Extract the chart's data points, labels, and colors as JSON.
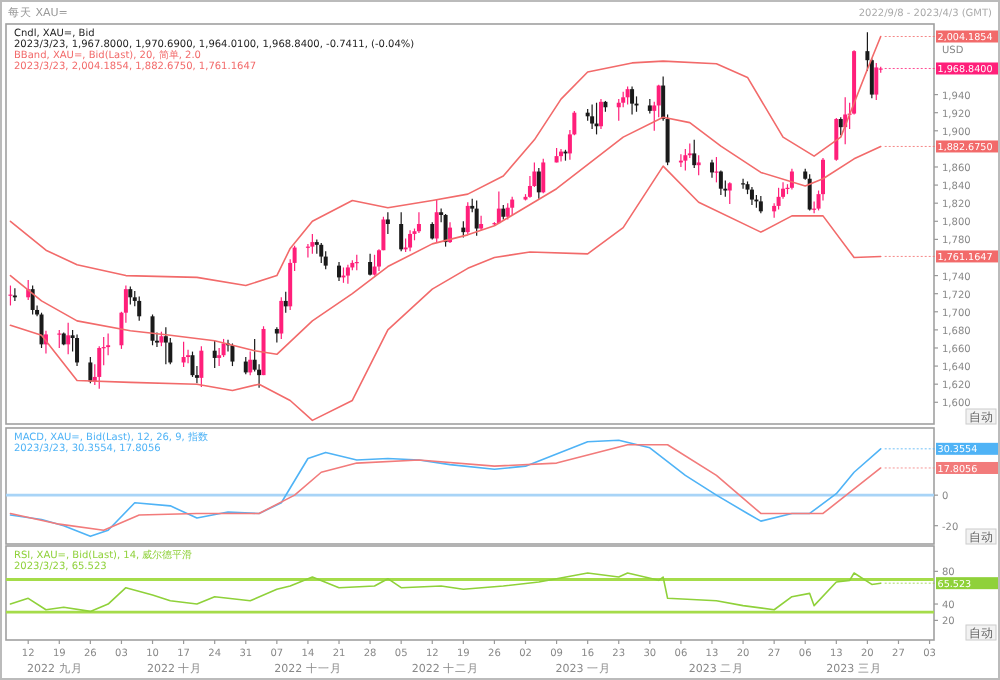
{
  "chart_data": [
    {
      "type": "candlestick",
      "title": "每天 XAU=",
      "subtitle": "2022/9/8 - 2023/4/3 (GMT)",
      "ylabel": "USD",
      "xlim": [
        "2022-09-07",
        "2023-04-04"
      ],
      "ylim": [
        1576,
        2018
      ],
      "yticks": [
        {
          "value": 1600,
          "label": "1,600"
        },
        {
          "value": 1620,
          "label": "1,620"
        },
        {
          "value": 1640,
          "label": "1,640"
        },
        {
          "value": 1660,
          "label": "1,660"
        },
        {
          "value": 1680,
          "label": "1,680"
        },
        {
          "value": 1700,
          "label": "1,700"
        },
        {
          "value": 1720,
          "label": "1,720"
        },
        {
          "value": 1740,
          "label": "1,740"
        },
        {
          "value": 1780,
          "label": "1,780"
        },
        {
          "value": 1800,
          "label": "1,800"
        },
        {
          "value": 1820,
          "label": "1,820"
        },
        {
          "value": 1840,
          "label": "1,840"
        },
        {
          "value": 1860,
          "label": "1,860"
        },
        {
          "value": 1900,
          "label": "1,900"
        },
        {
          "value": 1920,
          "label": "1,920"
        },
        {
          "value": 1940,
          "label": "1,940"
        }
      ],
      "tick_labels": "y",
      "annotations": [
        "2023/3/23, 1,967.8000, 1,970.6900, 1,964.0100, 1,968.8400, -0.7411, (-0.04%)",
        "2023/3/23, 2,004.1854, 1,882.6750, 1,761.1647",
        "自动",
        {
          "text": "2,004.1854",
          "x": "2023-03-23",
          "y": 2004.1854
        },
        {
          "text": "1,968.8400",
          "x": "2023-03-23",
          "y": 1968.84
        },
        {
          "text": "1,882.6750",
          "x": "2023-03-23",
          "y": 1882.675
        },
        {
          "text": "1,761.1647",
          "x": "2023-03-23",
          "y": 1761.1647
        }
      ],
      "series": [
        {
          "type": "candlestick",
          "name": "Cndl, XAU=, Bid",
          "color": "#222222",
          "x": [
            "2022-09-08",
            "2022-09-09",
            "2022-09-12",
            "2022-09-13",
            "2022-09-14",
            "2022-09-15",
            "2022-09-16",
            "2022-09-19",
            "2022-09-20",
            "2022-09-21",
            "2022-09-22",
            "2022-09-23",
            "2022-09-26",
            "2022-09-27",
            "2022-09-28",
            "2022-09-29",
            "2022-09-30",
            "2022-10-03",
            "2022-10-04",
            "2022-10-05",
            "2022-10-06",
            "2022-10-07",
            "2022-10-10",
            "2022-10-11",
            "2022-10-12",
            "2022-10-13",
            "2022-10-14",
            "2022-10-17",
            "2022-10-18",
            "2022-10-19",
            "2022-10-20",
            "2022-10-21",
            "2022-10-24",
            "2022-10-25",
            "2022-10-26",
            "2022-10-27",
            "2022-10-28",
            "2022-10-31",
            "2022-11-01",
            "2022-11-02",
            "2022-11-03",
            "2022-11-04",
            "2022-11-07",
            "2022-11-08",
            "2022-11-09",
            "2022-11-10",
            "2022-11-11",
            "2022-11-14",
            "2022-11-15",
            "2022-11-16",
            "2022-11-17",
            "2022-11-18",
            "2022-11-21",
            "2022-11-22",
            "2022-11-23",
            "2022-11-24",
            "2022-11-25",
            "2022-11-28",
            "2022-11-29",
            "2022-11-30",
            "2022-12-01",
            "2022-12-02",
            "2022-12-05",
            "2022-12-06",
            "2022-12-07",
            "2022-12-08",
            "2022-12-09",
            "2022-12-12",
            "2022-12-13",
            "2022-12-14",
            "2022-12-15",
            "2022-12-16",
            "2022-12-19",
            "2022-12-20",
            "2022-12-21",
            "2022-12-22",
            "2022-12-23",
            "2022-12-26",
            "2022-12-27",
            "2022-12-28",
            "2022-12-29",
            "2022-12-30",
            "2023-01-02",
            "2023-01-03",
            "2023-01-04",
            "2023-01-05",
            "2023-01-06",
            "2023-01-09",
            "2023-01-10",
            "2023-01-11",
            "2023-01-12",
            "2023-01-13",
            "2023-01-16",
            "2023-01-17",
            "2023-01-18",
            "2023-01-19",
            "2023-01-20",
            "2023-01-23",
            "2023-01-24",
            "2023-01-25",
            "2023-01-26",
            "2023-01-27",
            "2023-01-30",
            "2023-01-31",
            "2023-02-01",
            "2023-02-02",
            "2023-02-03",
            "2023-02-06",
            "2023-02-07",
            "2023-02-08",
            "2023-02-09",
            "2023-02-10",
            "2023-02-13",
            "2023-02-14",
            "2023-02-15",
            "2023-02-16",
            "2023-02-17",
            "2023-02-20",
            "2023-02-21",
            "2023-02-22",
            "2023-02-23",
            "2023-02-24",
            "2023-02-27",
            "2023-02-28",
            "2023-03-01",
            "2023-03-02",
            "2023-03-03",
            "2023-03-06",
            "2023-03-07",
            "2023-03-08",
            "2023-03-09",
            "2023-03-10",
            "2023-03-13",
            "2023-03-14",
            "2023-03-15",
            "2023-03-16",
            "2023-03-17",
            "2023-03-20",
            "2023-03-21",
            "2023-03-22",
            "2023-03-23"
          ],
          "ohlc": [
            [
              1718,
              1729,
              1707,
              1719
            ],
            [
              1718,
              1726,
              1712,
              1716
            ],
            [
              1716,
              1735,
              1713,
              1725
            ],
            [
              1725,
              1729,
              1697,
              1702
            ],
            [
              1702,
              1707,
              1695,
              1697
            ],
            [
              1697,
              1699,
              1660,
              1664
            ],
            [
              1664,
              1679,
              1654,
              1675
            ],
            [
              1675,
              1680,
              1660,
              1676
            ],
            [
              1676,
              1677,
              1663,
              1664
            ],
            [
              1664,
              1688,
              1653,
              1674
            ],
            [
              1674,
              1680,
              1656,
              1671
            ],
            [
              1671,
              1675,
              1640,
              1644
            ],
            [
              1644,
              1650,
              1621,
              1623
            ],
            [
              1623,
              1642,
              1619,
              1628
            ],
            [
              1628,
              1662,
              1615,
              1660
            ],
            [
              1660,
              1672,
              1641,
              1661
            ],
            [
              1661,
              1676,
              1652,
              1663
            ],
            [
              1663,
              1700,
              1659,
              1699
            ],
            [
              1699,
              1729,
              1688,
              1725
            ],
            [
              1725,
              1728,
              1708,
              1716
            ],
            [
              1716,
              1723,
              1706,
              1712
            ],
            [
              1712,
              1717,
              1690,
              1695
            ],
            [
              1695,
              1697,
              1663,
              1668
            ],
            [
              1668,
              1677,
              1661,
              1666
            ],
            [
              1666,
              1678,
              1662,
              1673
            ],
            [
              1673,
              1683,
              1642,
              1666
            ],
            [
              1666,
              1671,
              1642,
              1644
            ],
            [
              1644,
              1667,
              1639,
              1650
            ],
            [
              1650,
              1658,
              1643,
              1652
            ],
            [
              1652,
              1656,
              1628,
              1630
            ],
            [
              1630,
              1640,
              1621,
              1627
            ],
            [
              1627,
              1662,
              1617,
              1657
            ],
            [
              1657,
              1668,
              1638,
              1649
            ],
            [
              1649,
              1660,
              1640,
              1652
            ],
            [
              1652,
              1670,
              1650,
              1665
            ],
            [
              1665,
              1669,
              1656,
              1663
            ],
            [
              1663,
              1665,
              1640,
              1645
            ],
            [
              1645,
              1650,
              1631,
              1633
            ],
            [
              1633,
              1656,
              1630,
              1647
            ],
            [
              1647,
              1670,
              1634,
              1636
            ],
            [
              1636,
              1642,
              1616,
              1630
            ],
            [
              1630,
              1684,
              1630,
              1681
            ],
            [
              1681,
              1683,
              1666,
              1676
            ],
            [
              1676,
              1716,
              1670,
              1712
            ],
            [
              1712,
              1722,
              1699,
              1706
            ],
            [
              1706,
              1758,
              1702,
              1754
            ],
            [
              1754,
              1773,
              1745,
              1771
            ],
            [
              1771,
              1775,
              1760,
              1772
            ],
            [
              1772,
              1786,
              1764,
              1777
            ],
            [
              1777,
              1780,
              1764,
              1774
            ],
            [
              1774,
              1776,
              1754,
              1761
            ],
            [
              1761,
              1767,
              1747,
              1751
            ],
            [
              1751,
              1755,
              1734,
              1738
            ],
            [
              1738,
              1749,
              1732,
              1740
            ],
            [
              1740,
              1752,
              1731,
              1749
            ],
            [
              1749,
              1757,
              1746,
              1754
            ],
            [
              1754,
              1763,
              1746,
              1755
            ],
            [
              1755,
              1764,
              1740,
              1741
            ],
            [
              1741,
              1763,
              1740,
              1750
            ],
            [
              1750,
              1769,
              1745,
              1768
            ],
            [
              1768,
              1805,
              1768,
              1802
            ],
            [
              1802,
              1810,
              1786,
              1797
            ],
            [
              1797,
              1810,
              1767,
              1769
            ],
            [
              1769,
              1781,
              1766,
              1771
            ],
            [
              1771,
              1790,
              1767,
              1786
            ],
            [
              1786,
              1792,
              1779,
              1789
            ],
            [
              1789,
              1810,
              1787,
              1797
            ],
            [
              1797,
              1799,
              1780,
              1781
            ],
            [
              1781,
              1824,
              1776,
              1810
            ],
            [
              1810,
              1814,
              1799,
              1807
            ],
            [
              1807,
              1808,
              1772,
              1777
            ],
            [
              1777,
              1799,
              1776,
              1793
            ],
            [
              1793,
              1800,
              1782,
              1788
            ],
            [
              1788,
              1821,
              1786,
              1817
            ],
            [
              1817,
              1825,
              1810,
              1814
            ],
            [
              1814,
              1823,
              1784,
              1792
            ],
            [
              1792,
              1806,
              1790,
              1797
            ],
            [
              1797,
              1799,
              1795,
              1798
            ],
            [
              1798,
              1833,
              1798,
              1814
            ],
            [
              1814,
              1818,
              1802,
              1805
            ],
            [
              1805,
              1820,
              1802,
              1815
            ],
            [
              1815,
              1827,
              1807,
              1824
            ],
            [
              1824,
              1830,
              1823,
              1827
            ],
            [
              1827,
              1850,
              1826,
              1839
            ],
            [
              1839,
              1865,
              1838,
              1855
            ],
            [
              1855,
              1859,
              1825,
              1832
            ],
            [
              1832,
              1869,
              1831,
              1865
            ],
            [
              1865,
              1881,
              1865,
              1872
            ],
            [
              1872,
              1880,
              1866,
              1877
            ],
            [
              1877,
              1879,
              1867,
              1875
            ],
            [
              1875,
              1901,
              1868,
              1896
            ],
            [
              1896,
              1922,
              1895,
              1920
            ],
            [
              1920,
              1924,
              1911,
              1916
            ],
            [
              1916,
              1929,
              1902,
              1908
            ],
            [
              1908,
              1931,
              1896,
              1905
            ],
            [
              1905,
              1935,
              1902,
              1932
            ],
            [
              1932,
              1933,
              1921,
              1926
            ],
            [
              1926,
              1935,
              1911,
              1931
            ],
            [
              1931,
              1943,
              1926,
              1937
            ],
            [
              1937,
              1949,
              1929,
              1946
            ],
            [
              1946,
              1949,
              1918,
              1930
            ],
            [
              1930,
              1938,
              1921,
              1928
            ],
            [
              1928,
              1935,
              1919,
              1922
            ],
            [
              1922,
              1932,
              1900,
              1928
            ],
            [
              1928,
              1951,
              1915,
              1950
            ],
            [
              1950,
              1960,
              1911,
              1913
            ],
            [
              1913,
              1918,
              1862,
              1865
            ],
            [
              1865,
              1874,
              1860,
              1867
            ],
            [
              1867,
              1880,
              1856,
              1873
            ],
            [
              1873,
              1886,
              1870,
              1875
            ],
            [
              1875,
              1890,
              1859,
              1862
            ],
            [
              1862,
              1873,
              1851,
              1865
            ],
            [
              1865,
              1868,
              1848,
              1854
            ],
            [
              1854,
              1871,
              1843,
              1855
            ],
            [
              1855,
              1856,
              1829,
              1836
            ],
            [
              1836,
              1845,
              1827,
              1834
            ],
            [
              1834,
              1843,
              1819,
              1842
            ],
            [
              1842,
              1847,
              1836,
              1841
            ],
            [
              1841,
              1844,
              1830,
              1835
            ],
            [
              1835,
              1838,
              1818,
              1824
            ],
            [
              1824,
              1829,
              1815,
              1822
            ],
            [
              1822,
              1828,
              1809,
              1811
            ],
            [
              1811,
              1820,
              1804,
              1817
            ],
            [
              1817,
              1837,
              1813,
              1827
            ],
            [
              1827,
              1843,
              1825,
              1836
            ],
            [
              1836,
              1841,
              1830,
              1837
            ],
            [
              1837,
              1858,
              1835,
              1855
            ],
            [
              1855,
              1858,
              1846,
              1847
            ],
            [
              1847,
              1852,
              1812,
              1813
            ],
            [
              1813,
              1822,
              1809,
              1814
            ],
            [
              1814,
              1834,
              1812,
              1830
            ],
            [
              1830,
              1870,
              1823,
              1868
            ],
            [
              1868,
              1914,
              1867,
              1913
            ],
            [
              1913,
              1915,
              1895,
              1904
            ],
            [
              1904,
              1937,
              1885,
              1918
            ],
            [
              1918,
              1931,
              1902,
              1919
            ],
            [
              1919,
              1989,
              1918,
              1988
            ],
            [
              1988,
              2009,
              1966,
              1978
            ],
            [
              1978,
              1980,
              1936,
              1940
            ],
            [
              1940,
              1975,
              1934,
              1970
            ],
            [
              1967.8,
              1970.69,
              1964.01,
              1968.84
            ]
          ],
          "colors": [
            "#ff1f7a",
            "#1a1a1a",
            "#ff1f7a",
            "#1a1a1a",
            "#1a1a1a",
            "#1a1a1a",
            "#ff1f7a",
            "#ff1f7a",
            "#1a1a1a",
            "#ff1f7a",
            "#1a1a1a",
            "#1a1a1a",
            "#1a1a1a",
            "#ff1f7a",
            "#ff1f7a",
            "#ff1f7a",
            "#ff1f7a",
            "#ff1f7a",
            "#ff1f7a",
            "#1a1a1a",
            "#1a1a1a",
            "#1a1a1a",
            "#1a1a1a",
            "#1a1a1a",
            "#ff1f7a",
            "#1a1a1a",
            "#1a1a1a",
            "#ff1f7a",
            "#ff1f7a",
            "#1a1a1a",
            "#1a1a1a",
            "#ff1f7a",
            "#1a1a1a",
            "#ff1f7a",
            "#ff1f7a",
            "#1a1a1a",
            "#1a1a1a",
            "#1a1a1a",
            "#ff1f7a",
            "#1a1a1a",
            "#1a1a1a",
            "#ff1f7a",
            "#1a1a1a",
            "#ff1f7a",
            "#1a1a1a",
            "#ff1f7a",
            "#ff1f7a",
            "#ff1f7a",
            "#ff1f7a",
            "#1a1a1a",
            "#1a1a1a",
            "#1a1a1a",
            "#1a1a1a",
            "#ff1f7a",
            "#ff1f7a",
            "#ff1f7a",
            "#ff1f7a",
            "#1a1a1a",
            "#ff1f7a",
            "#ff1f7a",
            "#ff1f7a",
            "#1a1a1a",
            "#1a1a1a",
            "#ff1f7a",
            "#ff1f7a",
            "#ff1f7a",
            "#ff1f7a",
            "#1a1a1a",
            "#ff1f7a",
            "#1a1a1a",
            "#1a1a1a",
            "#ff1f7a",
            "#1a1a1a",
            "#ff1f7a",
            "#1a1a1a",
            "#1a1a1a",
            "#ff1f7a",
            "#ff1f7a",
            "#ff1f7a",
            "#1a1a1a",
            "#ff1f7a",
            "#ff1f7a",
            "#ff1f7a",
            "#ff1f7a",
            "#ff1f7a",
            "#1a1a1a",
            "#ff1f7a",
            "#ff1f7a",
            "#ff1f7a",
            "#1a1a1a",
            "#ff1f7a",
            "#ff1f7a",
            "#1a1a1a",
            "#1a1a1a",
            "#1a1a1a",
            "#ff1f7a",
            "#1a1a1a",
            "#ff1f7a",
            "#ff1f7a",
            "#ff1f7a",
            "#1a1a1a",
            "#1a1a1a",
            "#1a1a1a",
            "#ff1f7a",
            "#ff1f7a",
            "#1a1a1a",
            "#1a1a1a",
            "#ff1f7a",
            "#ff1f7a",
            "#ff1f7a",
            "#1a1a1a",
            "#ff1f7a",
            "#1a1a1a",
            "#ff1f7a",
            "#1a1a1a",
            "#1a1a1a",
            "#ff1f7a",
            "#1a1a1a",
            "#1a1a1a",
            "#1a1a1a",
            "#1a1a1a",
            "#1a1a1a",
            "#ff1f7a",
            "#ff1f7a",
            "#ff1f7a",
            "#ff1f7a",
            "#ff1f7a",
            "#1a1a1a",
            "#1a1a1a",
            "#ff1f7a",
            "#ff1f7a",
            "#ff1f7a",
            "#ff1f7a",
            "#1a1a1a",
            "#ff1f7a",
            "#ff1f7a",
            "#ff1f7a",
            "#1a1a1a",
            "#1a1a1a",
            "#ff1f7a",
            "#ff1f7a"
          ]
        },
        {
          "type": "line",
          "name": "BBand, XAU=, Bid(Last), 20, 简单, 2.0",
          "color": "#f26a6a",
          "x": [
            "2022-09-08",
            "2022-09-16",
            "2022-09-23",
            "2022-10-04",
            "2022-10-20",
            "2022-10-31",
            "2022-11-07",
            "2022-11-10",
            "2022-11-15",
            "2022-11-24",
            "2022-12-02",
            "2022-12-12",
            "2022-12-20",
            "2022-12-28",
            "2023-01-04",
            "2023-01-10",
            "2023-01-16",
            "2023-01-26",
            "2023-02-02",
            "2023-02-14",
            "2023-02-21",
            "2023-03-01",
            "2023-03-08",
            "2023-03-14",
            "2023-03-20",
            "2023-03-23"
          ],
          "values": [
            1800,
            1768,
            1752,
            1740,
            1738,
            1729,
            1740,
            1770,
            1800,
            1823,
            1815,
            1823,
            1830,
            1850,
            1890,
            1935,
            1965,
            1975,
            1977,
            1974,
            1959,
            1893,
            1872,
            1893,
            1968,
            2004.1854
          ]
        },
        {
          "type": "line",
          "color": "#f26a6a",
          "x": [
            "2022-09-08",
            "2022-09-15",
            "2022-09-23",
            "2022-10-05",
            "2022-10-14",
            "2022-10-24",
            "2022-11-02",
            "2022-11-07",
            "2022-11-15",
            "2022-11-24",
            "2022-12-02",
            "2022-12-12",
            "2022-12-20",
            "2022-12-26",
            "2023-01-09",
            "2023-01-24",
            "2023-02-02",
            "2023-02-08",
            "2023-02-15",
            "2023-02-24",
            "2023-03-06",
            "2023-03-10",
            "2023-03-17",
            "2023-03-23"
          ],
          "values": [
            1740,
            1712,
            1690,
            1679,
            1674,
            1668,
            1657,
            1653,
            1690,
            1720,
            1750,
            1775,
            1785,
            1795,
            1836,
            1893,
            1915,
            1909,
            1883,
            1854,
            1839,
            1847,
            1869,
            1882.675
          ]
        },
        {
          "type": "line",
          "color": "#f26a6a",
          "x": [
            "2022-09-08",
            "2022-09-15",
            "2022-09-23",
            "2022-10-05",
            "2022-10-20",
            "2022-10-28",
            "2022-11-03",
            "2022-11-10",
            "2022-11-15",
            "2022-11-24",
            "2022-12-02",
            "2022-12-12",
            "2022-12-20",
            "2022-12-26",
            "2023-01-03",
            "2023-01-16",
            "2023-01-24",
            "2023-02-02",
            "2023-02-10",
            "2023-02-24",
            "2023-03-03",
            "2023-03-10",
            "2023-03-17",
            "2023-03-23"
          ],
          "values": [
            1685,
            1674,
            1624,
            1622,
            1620,
            1613,
            1620,
            1602,
            1580,
            1602,
            1680,
            1725,
            1748,
            1760,
            1766,
            1764,
            1793,
            1861,
            1821,
            1788,
            1806,
            1806,
            1760,
            1761.1647
          ]
        }
      ]
    },
    {
      "type": "line",
      "xlim": [
        "2022-09-07",
        "2023-04-04"
      ],
      "ylim": [
        -32,
        44
      ],
      "yticks": [
        -20,
        0
      ],
      "tick_labels": "y",
      "ref_lines": [
        {
          "axis": "y",
          "value": 0,
          "color": "#a8d4f7"
        }
      ],
      "annotations": [
        "2023/3/23, 30.3554, 17.8056",
        "自动",
        {
          "text": "30.3554",
          "x": "2023-03-23",
          "y": 30.3554
        },
        {
          "text": "17.8056",
          "x": "2023-03-23",
          "y": 17.8056
        }
      ],
      "series": [
        {
          "name": "MACD, XAU=, Bid(Last), 12, 26, 9, 指数",
          "color": "#4fb3f6",
          "x": [
            "2022-09-08",
            "2022-09-15",
            "2022-09-20",
            "2022-09-26",
            "2022-09-30",
            "2022-10-06",
            "2022-10-14",
            "2022-10-20",
            "2022-10-27",
            "2022-11-03",
            "2022-11-08",
            "2022-11-14",
            "2022-11-18",
            "2022-11-25",
            "2022-12-02",
            "2022-12-09",
            "2022-12-16",
            "2022-12-26",
            "2023-01-02",
            "2023-01-09",
            "2023-01-16",
            "2023-01-23",
            "2023-01-30",
            "2023-02-07",
            "2023-02-14",
            "2023-02-21",
            "2023-02-24",
            "2023-03-03",
            "2023-03-07",
            "2023-03-13",
            "2023-03-17",
            "2023-03-23"
          ],
          "values": [
            -13,
            -16,
            -20,
            -27,
            -23,
            -5,
            -7,
            -15,
            -11,
            -12,
            -5,
            24,
            28,
            23,
            24,
            23,
            20,
            17,
            19,
            27,
            35,
            36,
            31,
            13,
            0,
            -12,
            -17,
            -12,
            -12,
            1,
            15,
            30.3554
          ]
        },
        {
          "color": "#f27b7b",
          "x": [
            "2022-09-08",
            "2022-09-19",
            "2022-09-29",
            "2022-10-07",
            "2022-10-20",
            "2022-11-03",
            "2022-11-11",
            "2022-11-17",
            "2022-11-25",
            "2022-12-09",
            "2022-12-26",
            "2023-01-09",
            "2023-01-25",
            "2023-02-03",
            "2023-02-14",
            "2023-02-24",
            "2023-03-10",
            "2023-03-23"
          ],
          "values": [
            -12,
            -19,
            -23,
            -13,
            -12,
            -12,
            0,
            15,
            21,
            23,
            19,
            21,
            33,
            33,
            13,
            -12,
            -12,
            17.8056
          ]
        }
      ]
    },
    {
      "type": "line",
      "xlim": [
        "2022-09-07",
        "2023-04-04"
      ],
      "ylim": [
        -4,
        111
      ],
      "yticks": [
        20,
        40,
        80
      ],
      "xticks": [
        {
          "value": "2022-09-12",
          "label": "12"
        },
        {
          "value": "2022-09-19",
          "label": "19"
        },
        {
          "value": "2022-09-26",
          "label": "26"
        },
        {
          "value": "2022-10-03",
          "label": "03"
        },
        {
          "value": "2022-10-10",
          "label": "10"
        },
        {
          "value": "2022-10-17",
          "label": "17"
        },
        {
          "value": "2022-10-24",
          "label": "24"
        },
        {
          "value": "2022-10-31",
          "label": "31"
        },
        {
          "value": "2022-11-07",
          "label": "07"
        },
        {
          "value": "2022-11-14",
          "label": "14"
        },
        {
          "value": "2022-11-21",
          "label": "21"
        },
        {
          "value": "2022-11-28",
          "label": "28"
        },
        {
          "value": "2022-12-05",
          "label": "05"
        },
        {
          "value": "2022-12-12",
          "label": "12"
        },
        {
          "value": "2022-12-19",
          "label": "19"
        },
        {
          "value": "2022-12-26",
          "label": "26"
        },
        {
          "value": "2023-01-02",
          "label": "02"
        },
        {
          "value": "2023-01-09",
          "label": "09"
        },
        {
          "value": "2023-01-16",
          "label": "16"
        },
        {
          "value": "2023-01-23",
          "label": "23"
        },
        {
          "value": "2023-01-30",
          "label": "30"
        },
        {
          "value": "2023-02-06",
          "label": "06"
        },
        {
          "value": "2023-02-13",
          "label": "13"
        },
        {
          "value": "2023-02-20",
          "label": "20"
        },
        {
          "value": "2023-02-27",
          "label": "27"
        },
        {
          "value": "2023-03-06",
          "label": "06"
        },
        {
          "value": "2023-03-13",
          "label": "13"
        },
        {
          "value": "2023-03-20",
          "label": "20"
        },
        {
          "value": "2023-03-27",
          "label": "27"
        },
        {
          "value": "2023-04-03",
          "label": "03"
        }
      ],
      "x2lim": [
        "2022-09-07",
        "2023-04-04"
      ],
      "x2ticks": [
        {
          "value": "2022-09-18",
          "label": "2022 九月"
        },
        {
          "value": "2022-10-15",
          "label": "2022 十月"
        },
        {
          "value": "2022-11-14",
          "label": "2022 十一月"
        },
        {
          "value": "2022-12-15",
          "label": "2022 十二月"
        },
        {
          "value": "2023-01-15",
          "label": "2023 一月"
        },
        {
          "value": "2023-02-14",
          "label": "2023 二月"
        },
        {
          "value": "2023-03-17",
          "label": "2023 三月"
        }
      ],
      "ref_lines": [
        {
          "axis": "y",
          "value": 70,
          "color": "#a5dc4a"
        },
        {
          "axis": "y",
          "value": 30,
          "color": "#a5dc4a"
        }
      ],
      "annotations": [
        "2023/3/23, 65.523",
        "自动",
        {
          "text": "65.523",
          "x": "2023-03-23",
          "y": 65.523
        }
      ],
      "series": [
        {
          "name": "RSI, XAU=, Bid(Last), 14, 威尔德平滑",
          "color": "#8fd13a",
          "x": [
            "2022-09-08",
            "2022-09-12",
            "2022-09-16",
            "2022-09-20",
            "2022-09-26",
            "2022-09-30",
            "2022-10-04",
            "2022-10-10",
            "2022-10-14",
            "2022-10-20",
            "2022-10-24",
            "2022-11-01",
            "2022-11-07",
            "2022-11-10",
            "2022-11-15",
            "2022-11-21",
            "2022-11-29",
            "2022-12-02",
            "2022-12-05",
            "2022-12-14",
            "2022-12-19",
            "2022-12-28",
            "2023-01-05",
            "2023-01-09",
            "2023-01-16",
            "2023-01-23",
            "2023-01-25",
            "2023-02-01",
            "2023-02-02",
            "2023-02-03",
            "2023-02-14",
            "2023-02-20",
            "2023-02-27",
            "2023-03-03",
            "2023-03-07",
            "2023-03-08",
            "2023-03-13",
            "2023-03-16",
            "2023-03-17",
            "2023-03-21",
            "2023-03-23"
          ],
          "values": [
            40,
            47,
            33,
            36,
            31,
            40,
            60,
            51,
            44,
            40,
            49,
            44,
            58,
            62,
            73,
            60,
            62,
            71,
            60,
            62,
            58,
            62,
            67,
            71,
            78,
            73,
            78,
            69,
            73,
            47,
            44,
            38,
            33,
            49,
            53,
            38,
            67,
            69,
            78,
            64,
            65.523
          ]
        }
      ]
    }
  ]
}
